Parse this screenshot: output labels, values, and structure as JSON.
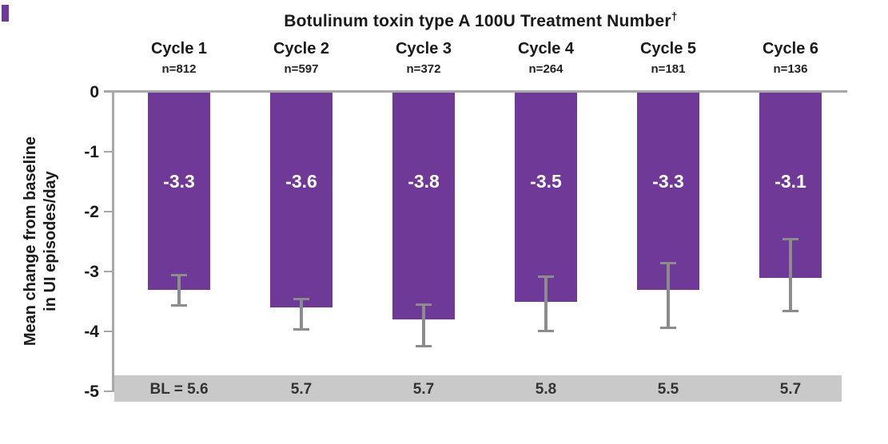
{
  "figure": {
    "corner_mark_color": "#6F3997"
  },
  "chart_data": {
    "type": "bar",
    "title": "Botulinum toxin type A 100U Treatment Number",
    "title_superscript": "†",
    "ylabel": "Mean change from baseline in UI episodes/day",
    "ylabel_line1": "Mean change from baseline",
    "ylabel_line2": "in UI episodes/day",
    "ylim": [
      -5,
      0
    ],
    "yticks": [
      "0",
      "-1",
      "-2",
      "-3",
      "-4",
      "-5"
    ],
    "ytick_values": [
      0,
      -1,
      -2,
      -3,
      -4,
      -5
    ],
    "grid": false,
    "legend": false,
    "orientation": "vertical-negative",
    "bar_color": "#6F3997",
    "error_bar_color": "#8C8C8C",
    "axis_color": "#A8A8A8",
    "baseline_band_color": "#C9C9C9",
    "value_label_color": "#FFFFFF",
    "categories": [
      "Cycle 1",
      "Cycle 2",
      "Cycle 3",
      "Cycle 4",
      "Cycle 5",
      "Cycle 6"
    ],
    "n_labels": [
      "n=812",
      "n=597",
      "n=372",
      "n=264",
      "n=181",
      "n=136"
    ],
    "values": [
      -3.3,
      -3.6,
      -3.8,
      -3.5,
      -3.3,
      -3.1
    ],
    "value_labels": [
      "-3.3",
      "-3.6",
      "-3.8",
      "-3.5",
      "-3.3",
      "-3.1"
    ],
    "error_bars": [
      {
        "upper": -3.05,
        "lower": -3.57
      },
      {
        "upper": -3.45,
        "lower": -3.97
      },
      {
        "upper": -3.55,
        "lower": -4.25
      },
      {
        "upper": -3.08,
        "lower": -4.0
      },
      {
        "upper": -2.85,
        "lower": -3.95
      },
      {
        "upper": -2.45,
        "lower": -3.67
      }
    ],
    "baseline_row_labels": [
      "BL = 5.6",
      "5.7",
      "5.7",
      "5.8",
      "5.5",
      "5.7"
    ],
    "baseline_values": [
      5.6,
      5.7,
      5.7,
      5.8,
      5.5,
      5.7
    ]
  }
}
